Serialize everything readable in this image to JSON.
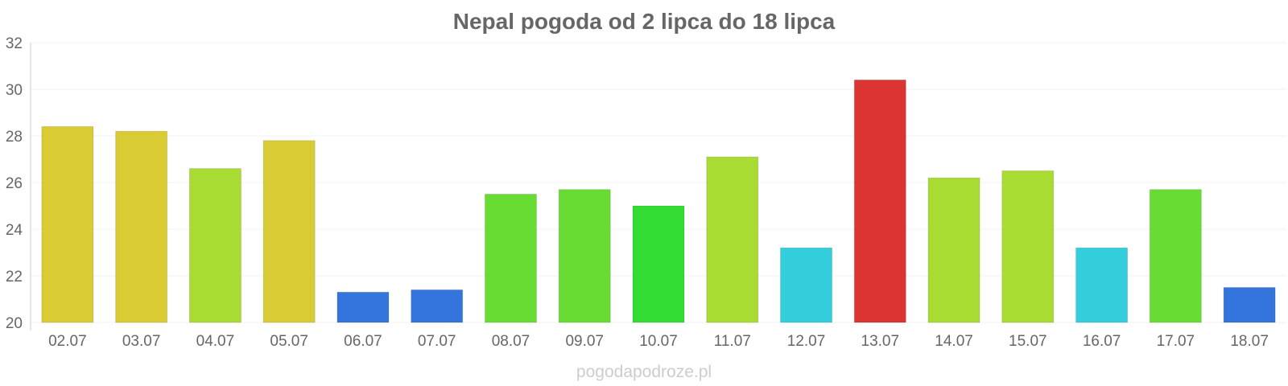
{
  "chart_data": {
    "type": "bar",
    "title": "Nepal pogoda od 2 lipca do 18 lipca",
    "xlabel": "",
    "ylabel": "",
    "categories": [
      "02.07",
      "03.07",
      "04.07",
      "05.07",
      "06.07",
      "07.07",
      "08.07",
      "09.07",
      "10.07",
      "11.07",
      "12.07",
      "13.07",
      "14.07",
      "15.07",
      "16.07",
      "17.07",
      "18.07"
    ],
    "values": [
      28.4,
      28.2,
      26.6,
      27.8,
      21.3,
      21.4,
      25.5,
      25.7,
      25.0,
      27.1,
      23.2,
      30.4,
      26.2,
      26.5,
      23.2,
      25.7,
      21.5
    ],
    "colors": [
      "#d8cb33",
      "#d8cb33",
      "#a8dc33",
      "#d8cb33",
      "#3375dc",
      "#3375dc",
      "#68dc33",
      "#68dc33",
      "#33dc33",
      "#a8dc33",
      "#33cedc",
      "#dc3333",
      "#a8dc33",
      "#a8dc33",
      "#33cedc",
      "#68dc33",
      "#3375dc"
    ],
    "ylim": [
      20,
      32
    ],
    "yticks": [
      "20",
      "22",
      "24",
      "26",
      "28",
      "30",
      "32"
    ],
    "grid": true,
    "legend": "none"
  },
  "watermark": "pogodapodroze.pl"
}
